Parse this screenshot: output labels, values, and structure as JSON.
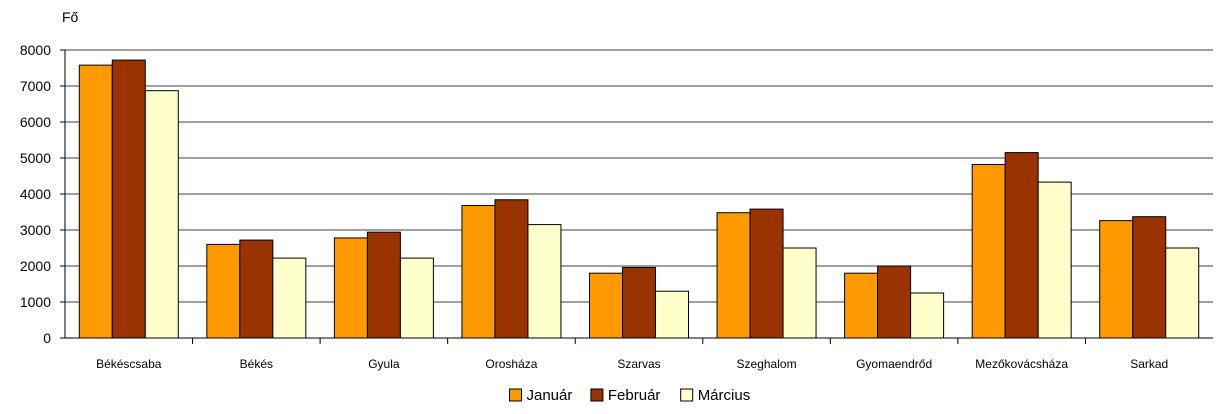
{
  "chart_data": {
    "type": "bar",
    "title": "",
    "xlabel": "",
    "ylabel": "Fő",
    "ylim": [
      0,
      8000
    ],
    "yticks": [
      0,
      1000,
      2000,
      3000,
      4000,
      5000,
      6000,
      7000,
      8000
    ],
    "grid": true,
    "legend_position": "bottom-center",
    "categories": [
      "Békéscsaba",
      "Békés",
      "Gyula",
      "Orosháza",
      "Szarvas",
      "Szeghalom",
      "Gyomaendrőd",
      "Mezőkovácsháza",
      "Sarkad"
    ],
    "series": [
      {
        "name": "Január",
        "color": "#FF9900",
        "values": [
          7580,
          2600,
          2780,
          3680,
          1800,
          3480,
          1800,
          4820,
          3260
        ]
      },
      {
        "name": "Február",
        "color": "#993300",
        "values": [
          7720,
          2720,
          2940,
          3840,
          1960,
          3580,
          2000,
          5150,
          3370
        ]
      },
      {
        "name": "Március",
        "color": "#FFFFCC",
        "values": [
          6870,
          2220,
          2220,
          3150,
          1300,
          2500,
          1250,
          4330,
          2500
        ]
      }
    ]
  }
}
